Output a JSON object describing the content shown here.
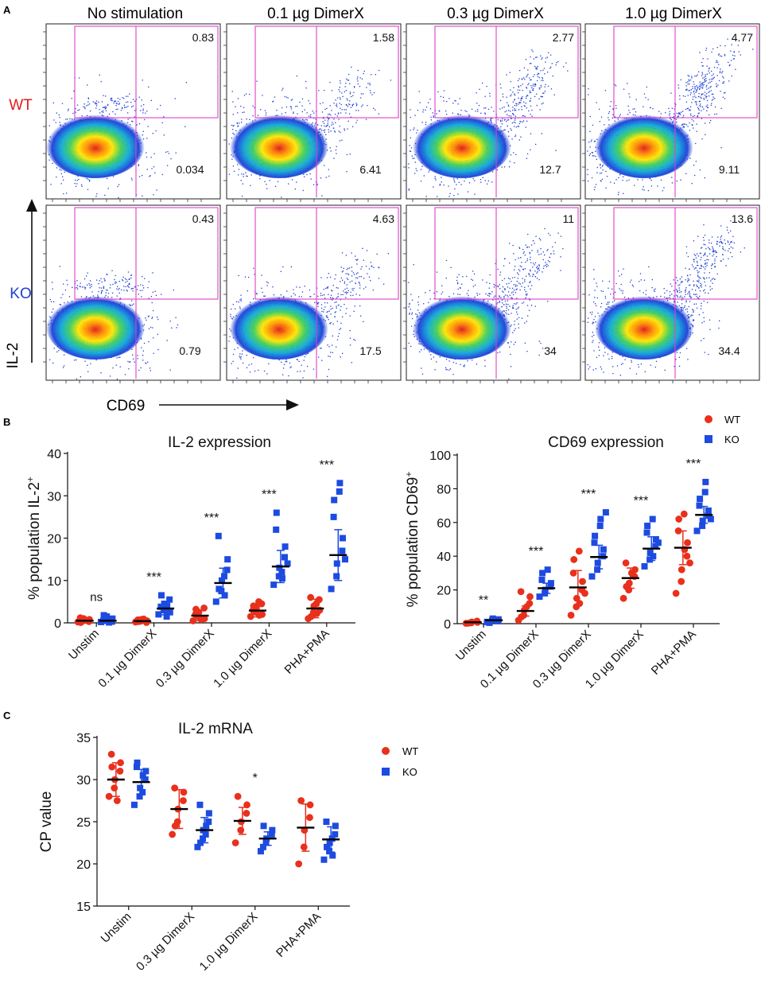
{
  "panel_a": {
    "label": "A",
    "columns": [
      "No stimulation",
      "0.1 µg DimerX",
      "0.3 µg DimerX",
      "1.0 µg DimerX"
    ],
    "rows": [
      "WT",
      "KO"
    ],
    "row_colors": {
      "WT": "#e41a1c",
      "KO": "#1f3fd1"
    },
    "y_axis_label": "IL-2",
    "x_axis_label": "CD69",
    "gate_color": "#e040c8",
    "quadrant_values": [
      [
        {
          "upper": "0.83",
          "lower": "0.034"
        },
        {
          "upper": "1.58",
          "lower": "6.41"
        },
        {
          "upper": "2.77",
          "lower": "12.7"
        },
        {
          "upper": "4.77",
          "lower": "9.11"
        }
      ],
      [
        {
          "upper": "0.43",
          "lower": "0.79"
        },
        {
          "upper": "4.63",
          "lower": "17.5"
        },
        {
          "upper": "11",
          "lower": "34"
        },
        {
          "upper": "13.6",
          "lower": "34.4"
        }
      ]
    ]
  },
  "legend": {
    "wt_label": "WT",
    "ko_label": "KO",
    "wt_color": "#e8301c",
    "ko_color": "#1d4be0"
  },
  "chart_data": [
    {
      "id": "il2-expression",
      "panel": "B",
      "type": "scatter",
      "title": "IL-2 expression",
      "ylabel": "% population IL-2",
      "ylabel_sup": "+",
      "ylim": [
        0,
        40
      ],
      "yticks": [
        0,
        10,
        20,
        30,
        40
      ],
      "categories": [
        "Unstim",
        "0.1 µg DimerX",
        "0.3 µg DimerX",
        "1.0 µg DimerX",
        "PHA+PMA"
      ],
      "significance": [
        "ns",
        "***",
        "***",
        "***",
        "***"
      ],
      "series": [
        {
          "name": "WT",
          "means": [
            0.5,
            0.4,
            1.7,
            2.9,
            3.4
          ],
          "sds": [
            0.4,
            0.4,
            1.2,
            1.5,
            2.2
          ],
          "points": [
            [
              0.2,
              0.5,
              1.0,
              0.3,
              0.8,
              1.2,
              0.1,
              0.6
            ],
            [
              0.2,
              0.4,
              0.8,
              0.1,
              0.5,
              0.7,
              0.3,
              0.9
            ],
            [
              0.5,
              1.5,
              2.5,
              3.5,
              1.0,
              2.0,
              3.2,
              0.8
            ],
            [
              1.5,
              2.5,
              3.5,
              4.5,
              2.0,
              3.0,
              4.0,
              5.0,
              1.8
            ],
            [
              1.0,
              2.5,
              4.0,
              5.5,
              3.0,
              6.0,
              1.5,
              4.5,
              2.2
            ]
          ]
        },
        {
          "name": "KO",
          "means": [
            0.5,
            3.4,
            9.4,
            13.3,
            16.0
          ],
          "sds": [
            0.6,
            1.5,
            3.5,
            3.8,
            6.0
          ],
          "points": [
            [
              0.2,
              0.8,
              1.5,
              0.3,
              1.0,
              0.5,
              1.8,
              0.1
            ],
            [
              2.0,
              3.0,
              4.5,
              5.5,
              2.5,
              3.8,
              6.5,
              1.5,
              4.0
            ],
            [
              5.0,
              7.5,
              10.0,
              12.5,
              15.0,
              20.5,
              8.0,
              11.0,
              6.5
            ],
            [
              9.0,
              11.0,
              13.0,
              15.5,
              18.0,
              22.0,
              26.0,
              12.0,
              10.5,
              14.0
            ],
            [
              8.0,
              11.0,
              14.0,
              17.0,
              20.0,
              25.0,
              29.0,
              31.0,
              33.0,
              15.0
            ]
          ]
        }
      ]
    },
    {
      "id": "cd69-expression",
      "panel": "B",
      "type": "scatter",
      "title": "CD69 expression",
      "ylabel": "% population CD69",
      "ylabel_sup": "+",
      "ylim": [
        0,
        100
      ],
      "yticks": [
        0,
        20,
        40,
        60,
        80,
        100
      ],
      "categories": [
        "Unstim",
        "0.1 µg DimerX",
        "0.3 µg DimerX",
        "1.0 µg DimerX",
        "PHA+PMA"
      ],
      "significance": [
        "**",
        "***",
        "***",
        "***",
        "***"
      ],
      "series": [
        {
          "name": "WT",
          "means": [
            0.8,
            7.5,
            21.5,
            27.0,
            45.0
          ],
          "sds": [
            0.5,
            3.0,
            10.0,
            6.0,
            10.0
          ],
          "points": [
            [
              0.2,
              0.5,
              1.0,
              1.5,
              0.8,
              0.3
            ],
            [
              2.0,
              5.0,
              8.0,
              12.0,
              16.0,
              19.0,
              4.0,
              10.0
            ],
            [
              5.0,
              10.0,
              15.0,
              20.0,
              25.0,
              30.0,
              38.0,
              43.0,
              12.0,
              18.0
            ],
            [
              15.0,
              20.0,
              24.0,
              28.0,
              32.0,
              36.0,
              22.0,
              30.0
            ],
            [
              18.0,
              25.0,
              32.0,
              40.0,
              48.0,
              55.0,
              62.0,
              65.0,
              44.0,
              36.0
            ]
          ]
        },
        {
          "name": "KO",
          "means": [
            2.0,
            21.0,
            39.5,
            44.5,
            64.5
          ],
          "sds": [
            1.0,
            3.0,
            7.0,
            7.0,
            5.0
          ],
          "points": [
            [
              1.0,
              2.0,
              3.0,
              1.5,
              2.5,
              0.5
            ],
            [
              16.0,
              18.0,
              20.0,
              22.0,
              24.0,
              26.0,
              30.0,
              32.0
            ],
            [
              28.0,
              32.0,
              36.0,
              40.0,
              44.0,
              48.0,
              52.0,
              58.0,
              62.0,
              66.0
            ],
            [
              34.0,
              38.0,
              42.0,
              46.0,
              50.0,
              54.0,
              58.0,
              62.0,
              40.0,
              48.0
            ],
            [
              55.0,
              58.0,
              61.0,
              64.0,
              67.0,
              70.0,
              74.0,
              78.0,
              84.0,
              62.0
            ]
          ]
        }
      ]
    },
    {
      "id": "il2-mrna",
      "panel": "C",
      "type": "scatter",
      "title": "IL-2 mRNA",
      "ylabel": "CP value",
      "ylabel_sup": "",
      "ylim": [
        15,
        35
      ],
      "yticks": [
        15,
        20,
        25,
        30,
        35
      ],
      "categories": [
        "Unstim",
        "0.3 µg DimerX",
        "1.0 µg DimerX",
        "PHA+PMA"
      ],
      "significance": [
        "",
        "",
        "*",
        ""
      ],
      "series": [
        {
          "name": "WT",
          "means": [
            30.0,
            26.5,
            25.1,
            24.3
          ],
          "sds": [
            2.0,
            2.3,
            1.6,
            2.8
          ],
          "points": [
            [
              28.0,
              29.0,
              30.0,
              31.0,
              32.0,
              33.0,
              31.5,
              27.5
            ],
            [
              23.5,
              25.0,
              26.5,
              27.5,
              28.5,
              29.0,
              24.5
            ],
            [
              22.5,
              24.0,
              25.0,
              26.0,
              27.0,
              28.0
            ],
            [
              20.0,
              22.0,
              24.0,
              25.5,
              27.0,
              27.5
            ]
          ]
        },
        {
          "name": "KO",
          "means": [
            29.7,
            24.0,
            23.0,
            22.9
          ],
          "sds": [
            1.5,
            1.5,
            0.8,
            1.5
          ],
          "points": [
            [
              27.0,
              28.0,
              29.0,
              30.0,
              31.0,
              31.5,
              32.0,
              28.5,
              30.5
            ],
            [
              22.0,
              23.0,
              24.0,
              25.0,
              26.0,
              27.0,
              22.5,
              23.5,
              24.5
            ],
            [
              21.5,
              22.5,
              23.0,
              23.5,
              24.0,
              22.0,
              24.5
            ],
            [
              20.5,
              21.5,
              22.5,
              23.5,
              24.5,
              25.0,
              22.0,
              23.0,
              21.0
            ]
          ]
        }
      ]
    }
  ]
}
